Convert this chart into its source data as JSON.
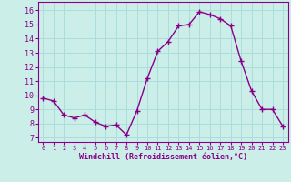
{
  "x": [
    0,
    1,
    2,
    3,
    4,
    5,
    6,
    7,
    8,
    9,
    10,
    11,
    12,
    13,
    14,
    15,
    16,
    17,
    18,
    19,
    20,
    21,
    22,
    23
  ],
  "y": [
    9.8,
    9.6,
    8.6,
    8.4,
    8.6,
    8.1,
    7.8,
    7.9,
    7.2,
    8.9,
    11.2,
    13.1,
    13.8,
    14.9,
    15.0,
    15.9,
    15.7,
    15.4,
    14.9,
    12.4,
    10.3,
    9.0,
    9.0,
    7.8
  ],
  "line_color": "#880088",
  "marker": "+",
  "marker_size": 4,
  "bg_color": "#cceee8",
  "grid_color": "#aadddd",
  "xlabel": "Windchill (Refroidissement éolien,°C)",
  "ylabel_ticks": [
    7,
    8,
    9,
    10,
    11,
    12,
    13,
    14,
    15,
    16
  ],
  "ylim": [
    6.7,
    16.6
  ],
  "xlim": [
    -0.5,
    23.5
  ],
  "tick_color": "#880088",
  "label_color": "#880088",
  "linewidth": 1.0
}
